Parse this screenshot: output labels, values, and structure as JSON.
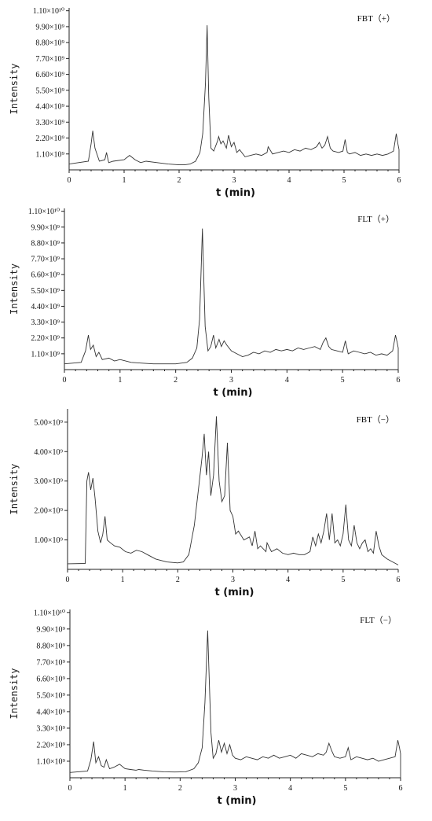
{
  "chart_data": [
    {
      "type": "line",
      "title": "FBT（+）",
      "xlabel": "t (min)",
      "ylabel": "Intensity",
      "xlim": [
        0,
        6
      ],
      "x_ticks": [
        "0",
        "1",
        "2",
        "3",
        "4",
        "5",
        "6"
      ],
      "y_ticks": [
        "1.10×10⁹",
        "2.20×10⁹",
        "3.30×10⁹",
        "4.40×10⁹",
        "5.50×10⁹",
        "6.60×10⁹",
        "7.70×10⁹",
        "8.80×10⁹",
        "9.90×10⁹",
        "1.10×10¹⁰"
      ],
      "y_tick_values": [
        1100000000.0,
        2200000000.0,
        3300000000.0,
        4400000000.0,
        5500000000.0,
        6600000000.0,
        7700000000.0,
        8800000000.0,
        9900000000.0,
        11000000000.0
      ],
      "ylim": [
        0,
        11200000000.0
      ],
      "grid": false,
      "series": [
        {
          "x": [
            0,
            0.35,
            0.4,
            0.43,
            0.47,
            0.55,
            0.65,
            0.68,
            0.72,
            0.8,
            1.0,
            1.1,
            1.2,
            1.3,
            1.4,
            1.6,
            1.8,
            2.0,
            2.1,
            2.2,
            2.3,
            2.38,
            2.43,
            2.48,
            2.51,
            2.54,
            2.58,
            2.63,
            2.7,
            2.72,
            2.76,
            2.8,
            2.86,
            2.9,
            2.95,
            3.0,
            3.05,
            3.1,
            3.2,
            3.3,
            3.4,
            3.5,
            3.6,
            3.62,
            3.7,
            3.8,
            3.9,
            4.0,
            4.1,
            4.2,
            4.3,
            4.4,
            4.5,
            4.55,
            4.6,
            4.65,
            4.7,
            4.75,
            4.8,
            4.9,
            4.98,
            5.02,
            5.06,
            5.1,
            5.2,
            5.3,
            5.4,
            5.5,
            5.6,
            5.7,
            5.8,
            5.9,
            5.95,
            5.98,
            6.0,
            6.0
          ],
          "y": [
            400000000.0,
            600000000.0,
            1800000000.0,
            2700000000.0,
            1500000000.0,
            600000000.0,
            700000000.0,
            1200000000.0,
            500000000.0,
            600000000.0,
            700000000.0,
            1000000000.0,
            700000000.0,
            500000000.0,
            600000000.0,
            500000000.0,
            400000000.0,
            350000000.0,
            350000000.0,
            400000000.0,
            600000000.0,
            1200000000.0,
            2500000000.0,
            6000000000.0,
            10000000000.0,
            5000000000.0,
            1500000000.0,
            1300000000.0,
            2000000000.0,
            2300000000.0,
            1800000000.0,
            2000000000.0,
            1500000000.0,
            2400000000.0,
            1600000000.0,
            1900000000.0,
            1200000000.0,
            1400000000.0,
            900000000.0,
            1000000000.0,
            1100000000.0,
            1000000000.0,
            1200000000.0,
            1600000000.0,
            1100000000.0,
            1200000000.0,
            1300000000.0,
            1200000000.0,
            1400000000.0,
            1300000000.0,
            1500000000.0,
            1400000000.0,
            1600000000.0,
            1900000000.0,
            1500000000.0,
            1700000000.0,
            2300000000.0,
            1500000000.0,
            1300000000.0,
            1200000000.0,
            1300000000.0,
            2100000000.0,
            1200000000.0,
            1100000000.0,
            1200000000.0,
            1000000000.0,
            1100000000.0,
            1000000000.0,
            1100000000.0,
            1000000000.0,
            1100000000.0,
            1300000000.0,
            2500000000.0,
            1800000000.0,
            1400000000.0,
            0.0
          ]
        }
      ]
    },
    {
      "type": "line",
      "title": "FLT（+）",
      "xlabel": "t (min)",
      "ylabel": "Intensity",
      "xlim": [
        0,
        6
      ],
      "x_ticks": [
        "0",
        "1",
        "2",
        "3",
        "4",
        "5",
        "6"
      ],
      "y_ticks": [
        "1.10×10⁹",
        "2.20×10⁹",
        "3.30×10⁹",
        "4.40×10⁹",
        "5.50×10⁹",
        "6.60×10⁹",
        "7.70×10⁹",
        "8.80×10⁹",
        "9.90×10⁹",
        "1.10×10¹⁰"
      ],
      "y_tick_values": [
        1100000000.0,
        2200000000.0,
        3300000000.0,
        4400000000.0,
        5500000000.0,
        6600000000.0,
        7700000000.0,
        8800000000.0,
        9900000000.0,
        11000000000.0
      ],
      "ylim": [
        0,
        11200000000.0
      ],
      "grid": false,
      "series": [
        {
          "x": [
            0,
            0.3,
            0.38,
            0.43,
            0.47,
            0.52,
            0.57,
            0.62,
            0.68,
            0.8,
            0.9,
            1.0,
            1.2,
            1.4,
            1.6,
            1.8,
            2.0,
            2.2,
            2.3,
            2.38,
            2.43,
            2.48,
            2.5,
            2.53,
            2.58,
            2.63,
            2.68,
            2.72,
            2.78,
            2.82,
            2.87,
            2.92,
            3.0,
            3.1,
            3.2,
            3.3,
            3.4,
            3.5,
            3.6,
            3.7,
            3.8,
            3.9,
            4.0,
            4.1,
            4.2,
            4.3,
            4.4,
            4.5,
            4.6,
            4.65,
            4.7,
            4.75,
            4.8,
            4.9,
            5.0,
            5.05,
            5.1,
            5.2,
            5.3,
            5.4,
            5.5,
            5.6,
            5.7,
            5.8,
            5.9,
            5.95,
            5.98,
            6.0,
            6.0
          ],
          "y": [
            400000000.0,
            500000000.0,
            1300000000.0,
            2400000000.0,
            1400000000.0,
            1700000000.0,
            900000000.0,
            1200000000.0,
            700000000.0,
            800000000.0,
            600000000.0,
            700000000.0,
            500000000.0,
            450000000.0,
            400000000.0,
            400000000.0,
            400000000.0,
            500000000.0,
            800000000.0,
            1500000000.0,
            3500000000.0,
            9800000000.0,
            7000000000.0,
            3000000000.0,
            1300000000.0,
            1600000000.0,
            2400000000.0,
            1500000000.0,
            2100000000.0,
            1600000000.0,
            2000000000.0,
            1700000000.0,
            1300000000.0,
            1100000000.0,
            900000000.0,
            1000000000.0,
            1200000000.0,
            1100000000.0,
            1300000000.0,
            1200000000.0,
            1400000000.0,
            1300000000.0,
            1400000000.0,
            1300000000.0,
            1500000000.0,
            1400000000.0,
            1500000000.0,
            1600000000.0,
            1400000000.0,
            1900000000.0,
            2200000000.0,
            1600000000.0,
            1400000000.0,
            1300000000.0,
            1200000000.0,
            2000000000.0,
            1100000000.0,
            1300000000.0,
            1200000000.0,
            1100000000.0,
            1200000000.0,
            1000000000.0,
            1100000000.0,
            1000000000.0,
            1300000000.0,
            2400000000.0,
            1900000000.0,
            1500000000.0,
            0.0
          ]
        }
      ]
    },
    {
      "type": "line",
      "title": "FBT（−）",
      "xlabel": "t (min)",
      "ylabel": "Intensity",
      "xlim": [
        0,
        6
      ],
      "x_ticks": [
        "0",
        "1",
        "2",
        "3",
        "4",
        "5",
        "6"
      ],
      "y_ticks": [
        "1.00×10⁹",
        "2.00×10⁹",
        "3.00×10⁹",
        "4.00×10⁹",
        "5.00×10⁹"
      ],
      "y_tick_values": [
        1000000000.0,
        2000000000.0,
        3000000000.0,
        4000000000.0,
        5000000000.0
      ],
      "ylim": [
        0,
        5450000000.0
      ],
      "grid": false,
      "series": [
        {
          "x": [
            0,
            0.32,
            0.35,
            0.38,
            0.42,
            0.46,
            0.5,
            0.55,
            0.6,
            0.64,
            0.68,
            0.72,
            0.78,
            0.85,
            0.95,
            1.05,
            1.15,
            1.25,
            1.35,
            1.45,
            1.6,
            1.8,
            2.0,
            2.1,
            2.2,
            2.3,
            2.38,
            2.44,
            2.48,
            2.52,
            2.56,
            2.6,
            2.65,
            2.7,
            2.75,
            2.8,
            2.85,
            2.9,
            2.95,
            3.0,
            3.05,
            3.1,
            3.2,
            3.3,
            3.35,
            3.4,
            3.45,
            3.5,
            3.6,
            3.62,
            3.7,
            3.8,
            3.9,
            4.0,
            4.1,
            4.2,
            4.3,
            4.4,
            4.45,
            4.5,
            4.55,
            4.6,
            4.65,
            4.7,
            4.75,
            4.8,
            4.85,
            4.9,
            4.95,
            5.0,
            5.05,
            5.1,
            5.15,
            5.2,
            5.25,
            5.3,
            5.35,
            5.4,
            5.45,
            5.5,
            5.55,
            5.6,
            5.65,
            5.7,
            5.8,
            5.9,
            6.0
          ],
          "y": [
            190000000.0,
            200000000.0,
            3000000000.0,
            3300000000.0,
            2700000000.0,
            3100000000.0,
            2400000000.0,
            1300000000.0,
            900000000.0,
            1200000000.0,
            1800000000.0,
            1000000000.0,
            900000000.0,
            800000000.0,
            750000000.0,
            600000000.0,
            550000000.0,
            650000000.0,
            600000000.0,
            500000000.0,
            350000000.0,
            250000000.0,
            220000000.0,
            250000000.0,
            500000000.0,
            1500000000.0,
            2800000000.0,
            3800000000.0,
            4600000000.0,
            3200000000.0,
            4000000000.0,
            2500000000.0,
            3200000000.0,
            5200000000.0,
            3000000000.0,
            2300000000.0,
            2500000000.0,
            4300000000.0,
            2000000000.0,
            1800000000.0,
            1200000000.0,
            1300000000.0,
            1000000000.0,
            1100000000.0,
            800000000.0,
            1300000000.0,
            700000000.0,
            800000000.0,
            600000000.0,
            900000000.0,
            600000000.0,
            700000000.0,
            550000000.0,
            500000000.0,
            550000000.0,
            500000000.0,
            500000000.0,
            600000000.0,
            1100000000.0,
            800000000.0,
            1200000000.0,
            900000000.0,
            1300000000.0,
            1900000000.0,
            1000000000.0,
            1900000000.0,
            900000000.0,
            1000000000.0,
            800000000.0,
            1200000000.0,
            2200000000.0,
            1000000000.0,
            800000000.0,
            1500000000.0,
            900000000.0,
            700000000.0,
            900000000.0,
            1000000000.0,
            600000000.0,
            700000000.0,
            550000000.0,
            1300000000.0,
            800000000.0,
            500000000.0,
            350000000.0,
            250000000.0,
            150000000.0
          ]
        }
      ]
    },
    {
      "type": "line",
      "title": "FLT（−）",
      "xlabel": "t (min)",
      "ylabel": "Intensity",
      "xlim": [
        0,
        6
      ],
      "x_ticks": [
        "0",
        "1",
        "2",
        "3",
        "4",
        "5",
        "6"
      ],
      "y_ticks": [
        "1.10×10⁹",
        "2.20×10⁹",
        "3.30×10⁹",
        "4.40×10⁹",
        "5.50×10⁹",
        "6.60×10⁹",
        "7.70×10⁹",
        "8.80×10⁹",
        "9.90×10⁹",
        "1.10×10¹⁰"
      ],
      "y_tick_values": [
        1100000000.0,
        2200000000.0,
        3300000000.0,
        4400000000.0,
        5500000000.0,
        6600000000.0,
        7700000000.0,
        8800000000.0,
        9900000000.0,
        11000000000.0
      ],
      "ylim": [
        0,
        11200000000.0
      ],
      "grid": false,
      "series": [
        {
          "x": [
            0,
            0.32,
            0.38,
            0.43,
            0.47,
            0.52,
            0.57,
            0.62,
            0.66,
            0.72,
            0.8,
            0.9,
            1.0,
            1.1,
            1.2,
            1.25,
            1.35,
            1.5,
            1.7,
            1.9,
            2.1,
            2.25,
            2.33,
            2.4,
            2.45,
            2.5,
            2.52,
            2.56,
            2.6,
            2.65,
            2.7,
            2.75,
            2.8,
            2.85,
            2.9,
            2.95,
            3.0,
            3.1,
            3.2,
            3.3,
            3.4,
            3.5,
            3.6,
            3.7,
            3.8,
            3.9,
            4.0,
            4.1,
            4.2,
            4.3,
            4.4,
            4.5,
            4.6,
            4.65,
            4.7,
            4.75,
            4.8,
            4.9,
            5.0,
            5.05,
            5.1,
            5.2,
            5.3,
            5.4,
            5.5,
            5.6,
            5.7,
            5.8,
            5.9,
            5.95,
            5.98,
            6.0,
            6.0
          ],
          "y": [
            350000000.0,
            450000000.0,
            1200000000.0,
            2400000000.0,
            1000000000.0,
            1400000000.0,
            800000000.0,
            700000000.0,
            1200000000.0,
            600000000.0,
            700000000.0,
            900000000.0,
            600000000.0,
            550000000.0,
            500000000.0,
            550000000.0,
            500000000.0,
            450000000.0,
            400000000.0,
            380000000.0,
            400000000.0,
            600000000.0,
            1000000000.0,
            2000000000.0,
            5000000000.0,
            9800000000.0,
            7500000000.0,
            3000000000.0,
            1300000000.0,
            1600000000.0,
            2500000000.0,
            1700000000.0,
            2300000000.0,
            1600000000.0,
            2200000000.0,
            1500000000.0,
            1300000000.0,
            1200000000.0,
            1400000000.0,
            1300000000.0,
            1200000000.0,
            1400000000.0,
            1300000000.0,
            1500000000.0,
            1300000000.0,
            1400000000.0,
            1500000000.0,
            1300000000.0,
            1600000000.0,
            1500000000.0,
            1400000000.0,
            1600000000.0,
            1500000000.0,
            1700000000.0,
            2300000000.0,
            1800000000.0,
            1400000000.0,
            1300000000.0,
            1400000000.0,
            2000000000.0,
            1200000000.0,
            1400000000.0,
            1300000000.0,
            1200000000.0,
            1300000000.0,
            1100000000.0,
            1200000000.0,
            1300000000.0,
            1400000000.0,
            2500000000.0,
            2000000000.0,
            1600000000.0,
            0.0
          ]
        }
      ]
    }
  ]
}
